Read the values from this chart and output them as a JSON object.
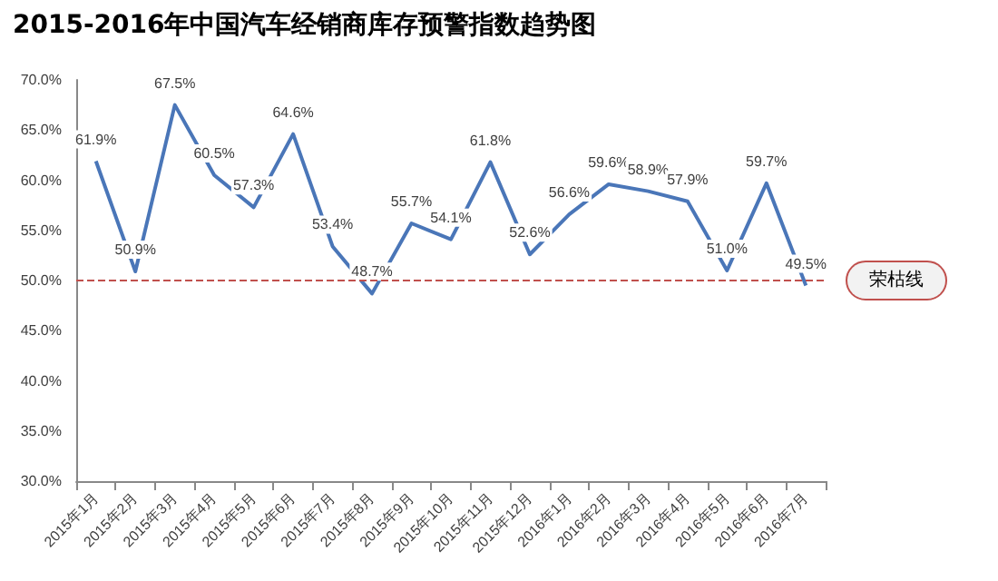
{
  "chart_data": {
    "type": "line",
    "title": "2015-2016年中国汽车经销商库存预警指数趋势图",
    "categories": [
      "2015年1月",
      "2015年2月",
      "2015年3月",
      "2015年4月",
      "2015年5月",
      "2015年6月",
      "2015年7月",
      "2015年8月",
      "2015年9月",
      "2015年10月",
      "2015年11月",
      "2015年12月",
      "2016年1月",
      "2016年2月",
      "2016年3月",
      "2016年4月",
      "2016年5月",
      "2016年6月",
      "2016年7月"
    ],
    "series": [
      {
        "color": "#4a76b8",
        "values": [
          61.9,
          50.9,
          67.5,
          60.5,
          57.3,
          64.6,
          53.4,
          48.7,
          55.7,
          54.1,
          61.8,
          52.6,
          56.6,
          59.6,
          58.9,
          57.9,
          51.0,
          59.7,
          49.5
        ],
        "value_labels": [
          "61.9%",
          "50.9%",
          "67.5%",
          "60.5%",
          "57.3%",
          "64.6%",
          "53.4%",
          "48.7%",
          "55.7%",
          "54.1%",
          "61.8%",
          "52.6%",
          "56.6%",
          "59.6%",
          "58.9%",
          "57.9%",
          "51.0%",
          "59.7%",
          "49.5%"
        ]
      }
    ],
    "ylim": [
      30,
      70
    ],
    "yticks": [
      {
        "value": 30,
        "label": "30.0%"
      },
      {
        "value": 35,
        "label": "35.0%"
      },
      {
        "value": 40,
        "label": "40.0%"
      },
      {
        "value": 45,
        "label": "45.0%"
      },
      {
        "value": 50,
        "label": "50.0%"
      },
      {
        "value": 55,
        "label": "55.0%"
      },
      {
        "value": 60,
        "label": "60.0%"
      },
      {
        "value": 65,
        "label": "65.0%"
      },
      {
        "value": 70,
        "label": "70.0%"
      }
    ],
    "ref_lines": [
      {
        "axis": "y",
        "value": 50,
        "label": "荣枯线",
        "color": "#c0504d",
        "line_style": "dashed"
      }
    ],
    "grid": false,
    "marker": "none",
    "line_style": "solid"
  }
}
